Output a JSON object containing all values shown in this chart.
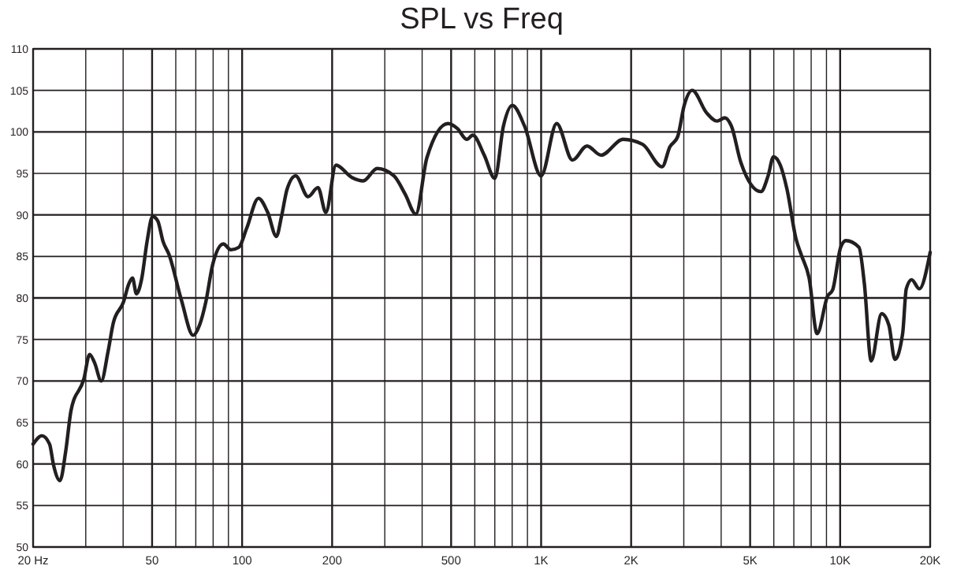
{
  "chart_data": {
    "type": "line",
    "title": "SPL vs Freq",
    "log": "x",
    "grid": true,
    "marker": "none",
    "line_style": "solid",
    "xlim": [
      20,
      20000
    ],
    "ylim": [
      50,
      110
    ],
    "xticks": [
      {
        "value": 20,
        "label": "20 Hz"
      },
      {
        "value": 30,
        "label": null
      },
      {
        "value": 40,
        "label": null
      },
      {
        "value": 50,
        "label": "50"
      },
      {
        "value": 60,
        "label": null
      },
      {
        "value": 70,
        "label": null
      },
      {
        "value": 80,
        "label": null
      },
      {
        "value": 90,
        "label": null
      },
      {
        "value": 100,
        "label": "100"
      },
      {
        "value": 200,
        "label": "200"
      },
      {
        "value": 300,
        "label": null
      },
      {
        "value": 400,
        "label": null
      },
      {
        "value": 500,
        "label": "500"
      },
      {
        "value": 600,
        "label": null
      },
      {
        "value": 700,
        "label": null
      },
      {
        "value": 800,
        "label": null
      },
      {
        "value": 900,
        "label": null
      },
      {
        "value": 1000,
        "label": "1K"
      },
      {
        "value": 2000,
        "label": "2K"
      },
      {
        "value": 3000,
        "label": null
      },
      {
        "value": 4000,
        "label": null
      },
      {
        "value": 5000,
        "label": "5K"
      },
      {
        "value": 6000,
        "label": null
      },
      {
        "value": 7000,
        "label": null
      },
      {
        "value": 8000,
        "label": null
      },
      {
        "value": 9000,
        "label": null
      },
      {
        "value": 10000,
        "label": "10K"
      },
      {
        "value": 20000,
        "label": "20K"
      }
    ],
    "yticks": [
      50,
      55,
      60,
      65,
      70,
      75,
      80,
      85,
      90,
      95,
      100,
      105,
      110
    ],
    "series": [
      {
        "color": "#231f20",
        "x": [
          20,
          21.4,
          22.7,
          23.4,
          24.6,
          25.7,
          26.8,
          29.6,
          30.9,
          32.1,
          33.8,
          35.6,
          37.1,
          40.1,
          41.8,
          43,
          44.3,
          46.2,
          48.1,
          50.2,
          52.2,
          54.4,
          57,
          62.6,
          68.6,
          72,
          75.6,
          79.7,
          86.5,
          91.8,
          97.5,
          103.6,
          113.4,
          121.8,
          130.2,
          135.4,
          141.4,
          151,
          166.2,
          179.4,
          190.6,
          206,
          233,
          254,
          283,
          322,
          351,
          381,
          415,
          488,
          525,
          564,
          591,
          645,
          700,
          748,
          801,
          880,
          1000,
          1127,
          1273,
          1423,
          1586,
          1881,
          2185,
          2540,
          2695,
          2860,
          3010,
          3200,
          3575,
          3874,
          4112,
          4328,
          4656,
          5432,
          5741,
          5985,
          6308,
          6640,
          7120,
          7412,
          7876,
          8372,
          9074,
          9444,
          10040,
          10452,
          11560,
          12050,
          12700,
          13760,
          14560,
          15240,
          16180,
          16640,
          17340,
          18400,
          20000
        ],
        "values": [
          62.4,
          63.4,
          62.4,
          59.9,
          58,
          61.5,
          66.5,
          70.3,
          73.2,
          72.2,
          70,
          73.5,
          77,
          79.5,
          81.7,
          82.4,
          80.5,
          82.4,
          86.8,
          89.8,
          89.3,
          86.8,
          85.2,
          79.8,
          75.5,
          76.7,
          79.5,
          84,
          86.5,
          85.8,
          86.1,
          88.4,
          92,
          90.3,
          87.4,
          89.8,
          93.1,
          94.7,
          92.2,
          93.3,
          90.3,
          96,
          94.5,
          94.1,
          95.6,
          94.7,
          92.5,
          90.1,
          96.9,
          101,
          100.4,
          99.1,
          99.6,
          97.2,
          94.4,
          100.7,
          103.2,
          100.7,
          94.7,
          101,
          96.6,
          98.3,
          97.2,
          99.1,
          98.5,
          95.8,
          98.2,
          99.4,
          103.2,
          105,
          102.3,
          101.3,
          101.7,
          100.7,
          96.3,
          92.8,
          94.7,
          97,
          96,
          93.1,
          87.1,
          85.2,
          82.4,
          75.7,
          80.2,
          81,
          86.1,
          86.9,
          86.1,
          81.7,
          72.4,
          78.1,
          76.7,
          72.6,
          75.7,
          81.1,
          82.2,
          81.1,
          85.5
        ]
      }
    ]
  }
}
